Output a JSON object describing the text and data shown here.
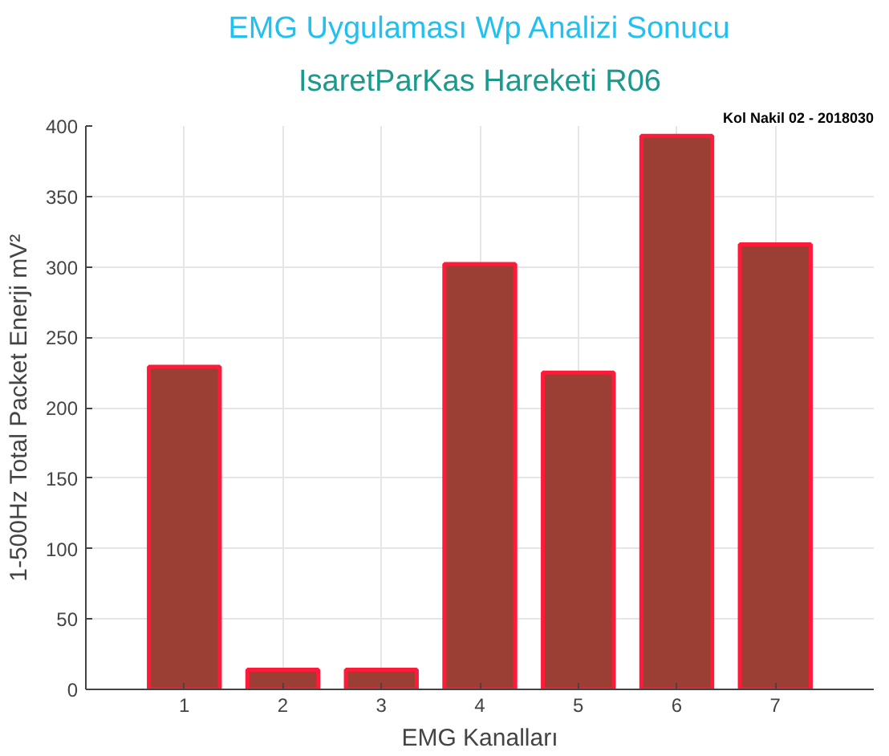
{
  "chart_data": {
    "type": "bar",
    "title": "EMG Uygulaması Wp Analizi Sonucu",
    "subtitle": "IsaretParKas Hareketi R06",
    "xlabel": "EMG Kanalları",
    "ylabel": "1-500Hz Total Packet Enerji mV²",
    "annotations": [
      "Kol Nakil 02 - 2018030"
    ],
    "x": [
      1,
      2,
      3,
      4,
      5,
      6,
      7
    ],
    "series": [
      {
        "color": "#9b3f35",
        "values": [
          229,
          14,
          14,
          302,
          225,
          393,
          316
        ]
      }
    ],
    "xlim": [
      0,
      8
    ],
    "xticks": [
      1,
      2,
      3,
      4,
      5,
      6,
      7
    ],
    "ylim": [
      0,
      400
    ],
    "yticks": [
      0,
      50,
      100,
      150,
      200,
      250,
      300,
      350,
      400
    ],
    "grid": true
  }
}
